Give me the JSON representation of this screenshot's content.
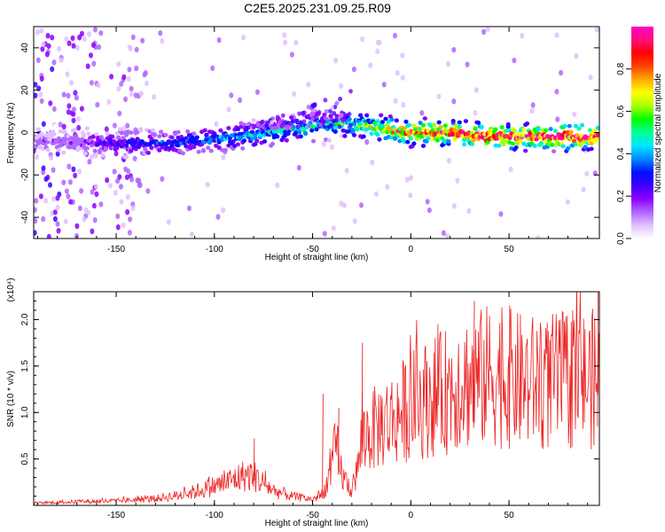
{
  "title": "C2E5.2025.231.09.25.R09",
  "colors": {
    "snr_line": "#ee2222",
    "axis": "#000000",
    "colormap": [
      "#ffffff",
      "#e2bfff",
      "#b066ff",
      "#8a00ff",
      "#3d00ff",
      "#0010ff",
      "#0088ff",
      "#00e5ff",
      "#00ff99",
      "#00ff00",
      "#a8ff00",
      "#ffff00",
      "#ffaa00",
      "#ff4400",
      "#ff0000",
      "#ff1080",
      "#ff00c8"
    ]
  },
  "chart_data": [
    {
      "type": "heatmap",
      "name": "spectrogram",
      "xlabel": "Height of straight line (km)",
      "ylabel": "Frequency (Hz)",
      "xlim": [
        -192,
        96
      ],
      "ylim": [
        -50,
        50
      ],
      "xticks": [
        -150,
        -100,
        -50,
        0,
        50
      ],
      "yticks": [
        -40,
        -20,
        0,
        20,
        40
      ],
      "colorbar": {
        "label": "Normalized spectral amplitude",
        "range": [
          0.0,
          1.0
        ],
        "ticks": [
          "0.0",
          "0.2",
          "0.4",
          "0.6",
          "0.8"
        ],
        "tick_values": [
          0.0,
          0.2,
          0.4,
          0.6,
          0.8
        ]
      },
      "ridge": {
        "description_points_x": [
          -192,
          -170,
          -150,
          -120,
          -100,
          -80,
          -60,
          -45,
          -35,
          -25,
          -10,
          0,
          20,
          40,
          60,
          96
        ],
        "frequency_y": [
          -4,
          -4,
          -5,
          -5,
          -3,
          -1,
          2,
          3,
          4,
          3,
          1,
          0,
          0,
          -2,
          -2,
          -2
        ],
        "amplitude": [
          0.15,
          0.2,
          0.3,
          0.35,
          0.4,
          0.45,
          0.5,
          0.5,
          0.55,
          0.6,
          0.75,
          0.85,
          0.9,
          0.95,
          0.95,
          0.95
        ]
      }
    },
    {
      "type": "line",
      "name": "snr",
      "xlabel": "Height of straight line (km)",
      "ylabel": "SNR (10 * v/v)",
      "multiplier": "(x10⁴)",
      "xlim": [
        -192,
        96
      ],
      "ylim": [
        0,
        23000
      ],
      "xticks": [
        -150,
        -100,
        -50,
        0,
        50
      ],
      "yticks": [
        5000,
        10000,
        15000,
        20000
      ],
      "ytick_labels": [
        "0.5",
        "1.0",
        "1.5",
        "2.0"
      ],
      "envelope_x": [
        -192,
        -170,
        -150,
        -130,
        -115,
        -105,
        -95,
        -85,
        -80,
        -75,
        -70,
        -60,
        -50,
        -45,
        -42,
        -38,
        -35,
        -30,
        -27,
        -25,
        -20,
        -15,
        -10,
        -5,
        0,
        10,
        20,
        25,
        30,
        40,
        50,
        60,
        70,
        80,
        96
      ],
      "envelope_y": [
        300,
        500,
        600,
        900,
        1500,
        2200,
        3000,
        4000,
        4000,
        3000,
        2000,
        1200,
        800,
        1500,
        3500,
        8000,
        4000,
        2000,
        5000,
        9000,
        10000,
        11000,
        11500,
        12500,
        13500,
        14500,
        15500,
        17000,
        16500,
        17500,
        17000,
        16500,
        16500,
        17000,
        17000
      ],
      "peaks": [
        {
          "x": -80,
          "y": 7200
        },
        {
          "x": -45,
          "y": 12000
        },
        {
          "x": -37,
          "y": 10500
        },
        {
          "x": -25,
          "y": 17500
        },
        {
          "x": 32,
          "y": 22000
        },
        {
          "x": 50,
          "y": 21500
        },
        {
          "x": 95,
          "y": 23000
        }
      ]
    }
  ]
}
